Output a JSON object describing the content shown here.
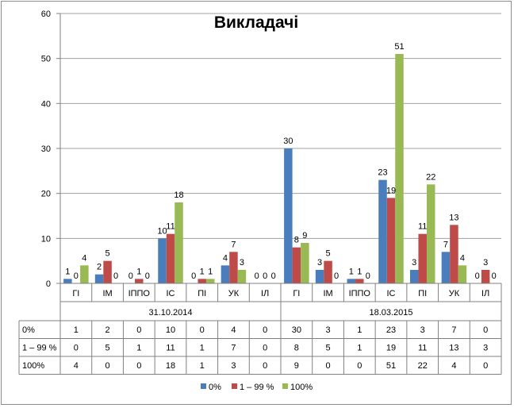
{
  "colors": {
    "series": [
      "#4a7dbb",
      "#be4b48",
      "#98b954"
    ],
    "grid": "#a0a0a0",
    "axis": "#808080",
    "table_border": "#808080"
  },
  "chart_data": {
    "type": "bar",
    "title": "Викладачі",
    "ylim": [
      0,
      60
    ],
    "yticks": [
      "0",
      "10",
      "20",
      "30",
      "40",
      "50",
      "60"
    ],
    "grid": true,
    "legend_position": "bottom",
    "groups": [
      {
        "label": "31.10.2014",
        "categories": [
          "ГІ",
          "ІМ",
          "ІППО",
          "ІС",
          "ПІ",
          "УК",
          "ІЛ"
        ]
      },
      {
        "label": "18.03.2015",
        "categories": [
          "ГІ",
          "ІМ",
          "ІППО",
          "ІС",
          "ПІ",
          "УК",
          "ІЛ"
        ]
      }
    ],
    "series": [
      {
        "name": "0%",
        "table_label": "0%",
        "values": [
          1,
          2,
          0,
          10,
          0,
          4,
          0,
          30,
          3,
          1,
          23,
          3,
          7,
          0
        ]
      },
      {
        "name": "1 – 99 %",
        "table_label": "1 – 99 %",
        "values": [
          0,
          5,
          1,
          11,
          1,
          7,
          0,
          8,
          5,
          1,
          19,
          11,
          13,
          3
        ]
      },
      {
        "name": "100%",
        "table_label": "100%",
        "values": [
          4,
          0,
          0,
          18,
          1,
          3,
          0,
          9,
          0,
          0,
          51,
          22,
          4,
          0
        ]
      }
    ]
  }
}
